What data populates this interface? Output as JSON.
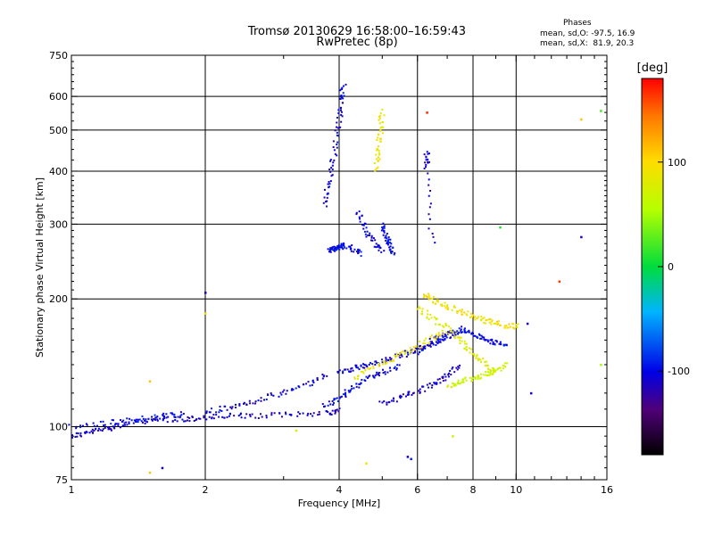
{
  "chart_data": {
    "type": "scatter",
    "title": "Tromsø 20130629 16:58:00–16:59:43",
    "subtitle": "RwPretec (8p)",
    "xlabel": "Frequency [MHz]",
    "ylabel": "Stationary phase Virtual Height [km]",
    "xscale": "log",
    "yscale": "log",
    "xlim": [
      1,
      16
    ],
    "ylim": [
      75,
      750
    ],
    "xticks": [
      1,
      2,
      4,
      6,
      8,
      10,
      16
    ],
    "xtick_labels": [
      "1",
      "2",
      "4",
      "6",
      "8",
      "10",
      "16"
    ],
    "yticks": [
      75,
      100,
      200,
      300,
      400,
      500,
      600,
      750
    ],
    "ytick_labels": [
      "75",
      "100",
      "200",
      "300",
      "400",
      "500",
      "600",
      "750"
    ],
    "x_gridlines": [
      2,
      4,
      6,
      8,
      10
    ],
    "y_gridlines": [
      100,
      200,
      300,
      400,
      500,
      600
    ],
    "grid": true,
    "phase_header": "Phases",
    "phase_stats": [
      "mean, sd,O: -97.5, 16.9",
      "mean, sd,X:  81.9, 20.3"
    ],
    "colorbar": {
      "label": "[deg]",
      "min": -180,
      "max": 180,
      "ticks": [
        100,
        0,
        -100
      ],
      "tick_labels": [
        "100",
        "0",
        "-100"
      ],
      "colormap": "rainbow"
    },
    "traces": [
      {
        "x": [
          1.0,
          1.1,
          1.2,
          1.3,
          1.45,
          1.6,
          1.8,
          2.0,
          2.3,
          2.7,
          3.2,
          3.8,
          4.0
        ],
        "y": [
          95,
          97,
          99,
          101,
          103,
          104,
          104,
          105,
          106,
          106,
          107,
          108,
          109
        ],
        "phase": -110
      },
      {
        "x": [
          1.0,
          1.2,
          1.4,
          1.6,
          1.8
        ],
        "y": [
          100,
          102,
          104,
          106,
          107
        ],
        "phase": -100
      },
      {
        "x": [
          2.0,
          2.3,
          2.6,
          3.0,
          3.4,
          3.8
        ],
        "y": [
          108,
          111,
          115,
          120,
          126,
          133
        ],
        "phase": -105
      },
      {
        "x": [
          3.7,
          4.0,
          4.3,
          4.6,
          5.0,
          5.5
        ],
        "y": [
          112,
          117,
          123,
          130,
          134,
          140
        ],
        "phase": -100
      },
      {
        "x": [
          4.0,
          4.3,
          4.6,
          5.0,
          5.4,
          5.8,
          6.2,
          6.6,
          7.0,
          7.5
        ],
        "y": [
          135,
          137,
          139,
          142,
          146,
          150,
          154,
          158,
          163,
          168
        ],
        "phase": -105
      },
      {
        "x": [
          5.0,
          5.5,
          6.0,
          6.5,
          7.0,
          7.5
        ],
        "y": [
          113,
          117,
          121,
          126,
          132,
          139
        ],
        "phase": -110
      },
      {
        "x": [
          6.0,
          6.5,
          7.0,
          7.5,
          8.0,
          8.5,
          9.0,
          9.5
        ],
        "y": [
          150,
          160,
          165,
          170,
          165,
          160,
          158,
          156
        ],
        "phase": -100
      },
      {
        "x": [
          4.3,
          4.8,
          5.3,
          5.8,
          6.4,
          7.0
        ],
        "y": [
          130,
          138,
          145,
          152,
          160,
          168
        ],
        "phase": 90
      },
      {
        "x": [
          6.0,
          6.5,
          7.0,
          7.5,
          8.0,
          8.5,
          9.0
        ],
        "y": [
          190,
          180,
          170,
          160,
          150,
          140,
          133
        ],
        "phase": 80
      },
      {
        "x": [
          7.0,
          7.5,
          8.0,
          8.5,
          9.0,
          9.5
        ],
        "y": [
          125,
          128,
          130,
          133,
          136,
          140
        ],
        "phase": 70
      },
      {
        "x": [
          6.2,
          6.6,
          7.0,
          7.6,
          8.2,
          8.8,
          9.5,
          10.2
        ],
        "y": [
          205,
          198,
          192,
          186,
          180,
          176,
          173,
          172
        ],
        "phase": 95
      },
      {
        "x": [
          3.7,
          3.8,
          3.9,
          4.0,
          4.05,
          4.1
        ],
        "y": [
          330,
          380,
          440,
          520,
          590,
          640
        ],
        "phase": -105
      },
      {
        "x": [
          3.8,
          3.9,
          4.0,
          4.1,
          4.3,
          4.5
        ],
        "y": [
          260,
          262,
          265,
          268,
          262,
          255
        ],
        "phase": -100
      },
      {
        "x": [
          4.4,
          4.6,
          4.8,
          5.0
        ],
        "y": [
          320,
          290,
          270,
          260
        ],
        "phase": -105
      },
      {
        "x": [
          4.85,
          4.9,
          4.95,
          5.0
        ],
        "y": [
          400,
          450,
          500,
          560
        ],
        "phase": 90
      },
      {
        "x": [
          5.0,
          5.1,
          5.2,
          5.3
        ],
        "y": [
          300,
          280,
          265,
          255
        ],
        "phase": -100
      },
      {
        "x": [
          6.3,
          6.3,
          6.5
        ],
        "y": [
          440,
          410,
          260
        ],
        "phase": -110
      }
    ],
    "isolated_points": [
      {
        "x": 6.3,
        "y": 550,
        "phase": 170
      },
      {
        "x": 12.5,
        "y": 220,
        "phase": 165
      },
      {
        "x": 14.0,
        "y": 530,
        "phase": 110
      },
      {
        "x": 15.5,
        "y": 555,
        "phase": 20
      },
      {
        "x": 14.0,
        "y": 280,
        "phase": -115
      },
      {
        "x": 9.2,
        "y": 295,
        "phase": 10
      },
      {
        "x": 15.5,
        "y": 140,
        "phase": 50
      },
      {
        "x": 2.0,
        "y": 207,
        "phase": -110
      },
      {
        "x": 2.0,
        "y": 185,
        "phase": 100
      },
      {
        "x": 1.5,
        "y": 78,
        "phase": 110
      },
      {
        "x": 1.6,
        "y": 80,
        "phase": -110
      },
      {
        "x": 3.2,
        "y": 98,
        "phase": 80
      },
      {
        "x": 4.6,
        "y": 82,
        "phase": 90
      },
      {
        "x": 5.7,
        "y": 85,
        "phase": -110
      },
      {
        "x": 5.8,
        "y": 84,
        "phase": -90
      },
      {
        "x": 7.2,
        "y": 95,
        "phase": 70
      },
      {
        "x": 10.8,
        "y": 120,
        "phase": -110
      },
      {
        "x": 10.6,
        "y": 175,
        "phase": -120
      },
      {
        "x": 1.5,
        "y": 128,
        "phase": 110
      }
    ]
  }
}
